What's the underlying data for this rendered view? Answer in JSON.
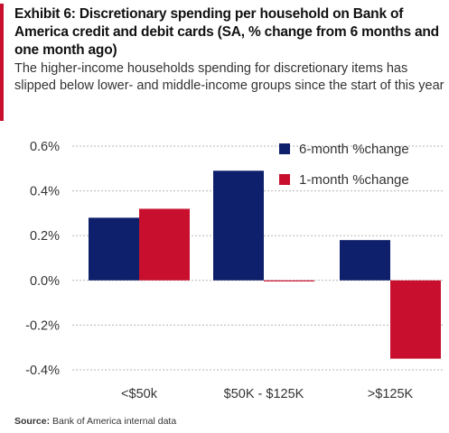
{
  "header": {
    "title": "Exhibit 6: Discretionary spending per household on Bank of America credit and debit cards (SA, % change from 6 months and one month ago)",
    "subtitle": "The higher-income households spending for discretionary items has slipped below lower- and middle-income groups since the start of this year"
  },
  "colors": {
    "accent": "#c8102e",
    "series1": "#0e1f6b",
    "series2": "#c8102e"
  },
  "chart_data": {
    "type": "bar",
    "categories": [
      "<$50k",
      "$50K - $125K",
      ">$125K"
    ],
    "series": [
      {
        "name": "6-month %change",
        "values": [
          0.28,
          0.49,
          0.18
        ]
      },
      {
        "name": "1-month %change",
        "values": [
          0.32,
          0.0,
          -0.35
        ]
      }
    ],
    "yticks": [
      "0.6%",
      "0.4%",
      "0.2%",
      "0.0%",
      "-0.2%",
      "-0.4%"
    ],
    "ylim": [
      -0.4,
      0.6
    ],
    "legend_position": "top-right"
  },
  "source": {
    "label": "Source:",
    "text": "Bank of America internal data"
  }
}
